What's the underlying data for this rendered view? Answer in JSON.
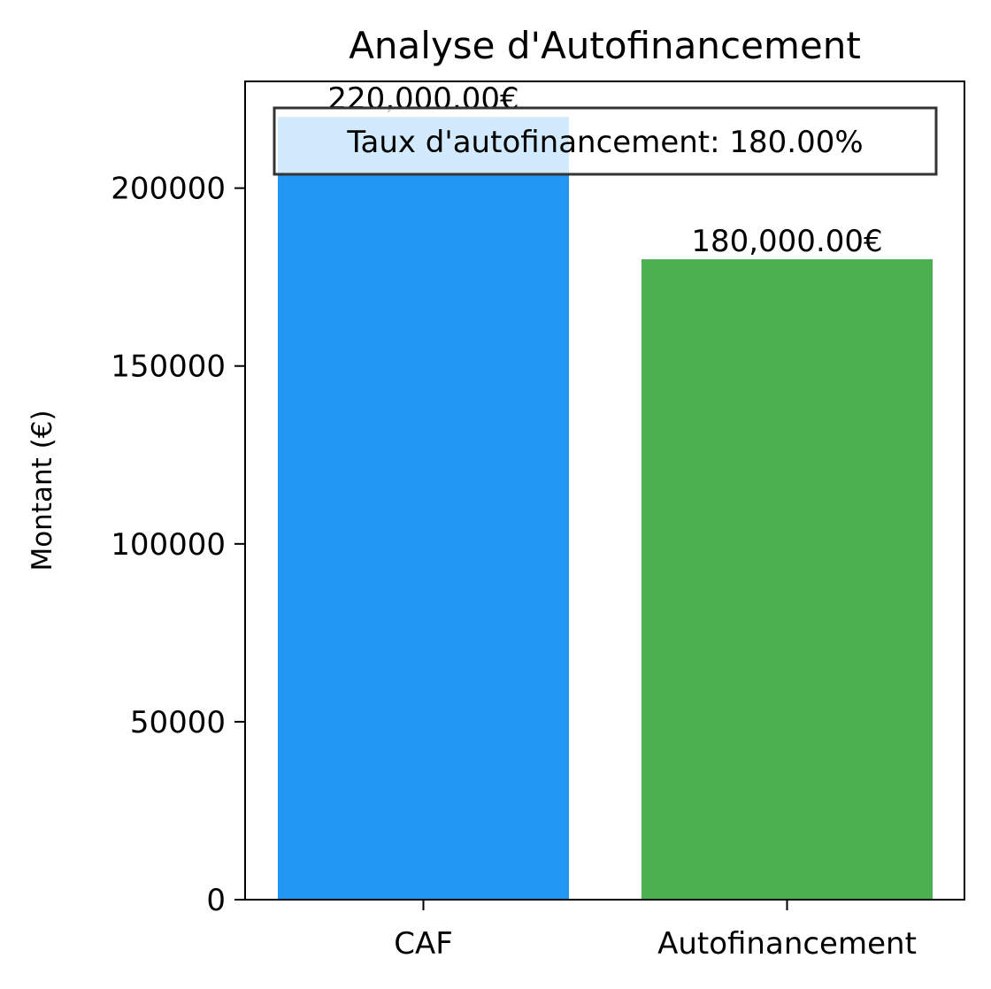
{
  "chart_data": {
    "type": "bar",
    "title": "Analyse d'Autofinancement",
    "xlabel": "",
    "ylabel": "Montant (€)",
    "categories": [
      "CAF",
      "Autofinancement"
    ],
    "values": [
      220000,
      180000
    ],
    "value_labels": [
      "220,000.00€",
      "180,000.00€"
    ],
    "colors": [
      "#2196F3",
      "#4CAF50"
    ],
    "ylim": [
      0,
      230000
    ],
    "yticks": [
      0,
      50000,
      100000,
      150000,
      200000
    ],
    "ytick_labels": [
      "0",
      "50000",
      "100000",
      "150000",
      "200000"
    ],
    "annotation": "Taux d'autofinancement: 180.00%",
    "grid": false,
    "legend": "none"
  }
}
